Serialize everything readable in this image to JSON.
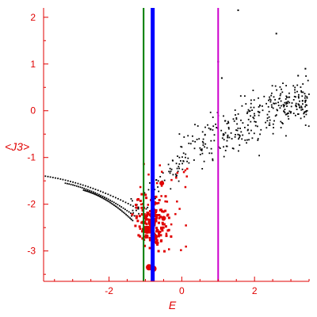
{
  "chart_data": {
    "type": "scatter",
    "title": "",
    "xlabel": "E",
    "ylabel": "<J3>",
    "xlim": [
      -3.8,
      3.5
    ],
    "ylim": [
      -3.65,
      2.2
    ],
    "x_ticks": [
      -2,
      0,
      2
    ],
    "y_ticks": [
      2,
      1,
      0,
      -1,
      -2,
      -3
    ],
    "grid": false,
    "legend": "none",
    "colors": {
      "axes": "#e00000",
      "black_points": "#000000",
      "red_points": "#e00000",
      "green_line": "#007a00",
      "blue_line": "#0000ff",
      "magenta_line": "#cc00cc"
    },
    "vertical_lines": [
      {
        "x": -1.05,
        "color": "#007a00",
        "width": "thin"
      },
      {
        "x": -0.8,
        "color": "#0000ff",
        "width": "thick"
      },
      {
        "x": 1.0,
        "color": "#cc00cc",
        "width": "thin"
      }
    ],
    "black_points": {
      "left_branches": [
        {
          "x_start": -3.75,
          "x_end": -1.2,
          "y_start": -1.4,
          "y_end": -2.1
        },
        {
          "x_start": -3.2,
          "x_end": -1.3,
          "y_start": -1.55,
          "y_end": -2.25
        },
        {
          "x_start": -2.7,
          "x_end": -1.35,
          "y_start": -1.7,
          "y_end": -2.35
        }
      ],
      "upper_cloud": {
        "x_range": [
          -0.2,
          3.5
        ],
        "y_range": [
          -1.4,
          1.1
        ],
        "trend_slope": 0.35
      },
      "top_outliers": [
        {
          "x": 1.0,
          "y": 1.05
        },
        {
          "x": 1.1,
          "y": 0.7
        },
        {
          "x": 1.55,
          "y": 2.15
        },
        {
          "x": 2.6,
          "y": 1.65
        },
        {
          "x": 3.2,
          "y": 0.75
        },
        {
          "x": 3.4,
          "y": 0.9
        }
      ]
    },
    "red_points": {
      "cluster_center": [
        -0.8,
        -2.4
      ],
      "cluster_spread": [
        0.45,
        0.5
      ],
      "extra_scatter": {
        "x_range": [
          -1.2,
          0.2
        ],
        "y_range": [
          -3.0,
          -1.1
        ]
      },
      "large_points": [
        {
          "x": -0.82,
          "y": -2.4,
          "r": 5
        },
        {
          "x": -0.95,
          "y": -2.55,
          "r": 5
        },
        {
          "x": -0.75,
          "y": -2.7,
          "r": 4
        },
        {
          "x": -1.0,
          "y": -2.55,
          "r": 4
        },
        {
          "x": -0.5,
          "y": -2.3,
          "r": 3
        },
        {
          "x": -0.55,
          "y": -1.55,
          "r": 3
        },
        {
          "x": -0.9,
          "y": -3.35,
          "r": 4
        },
        {
          "x": -0.78,
          "y": -3.38,
          "r": 4
        }
      ]
    }
  }
}
